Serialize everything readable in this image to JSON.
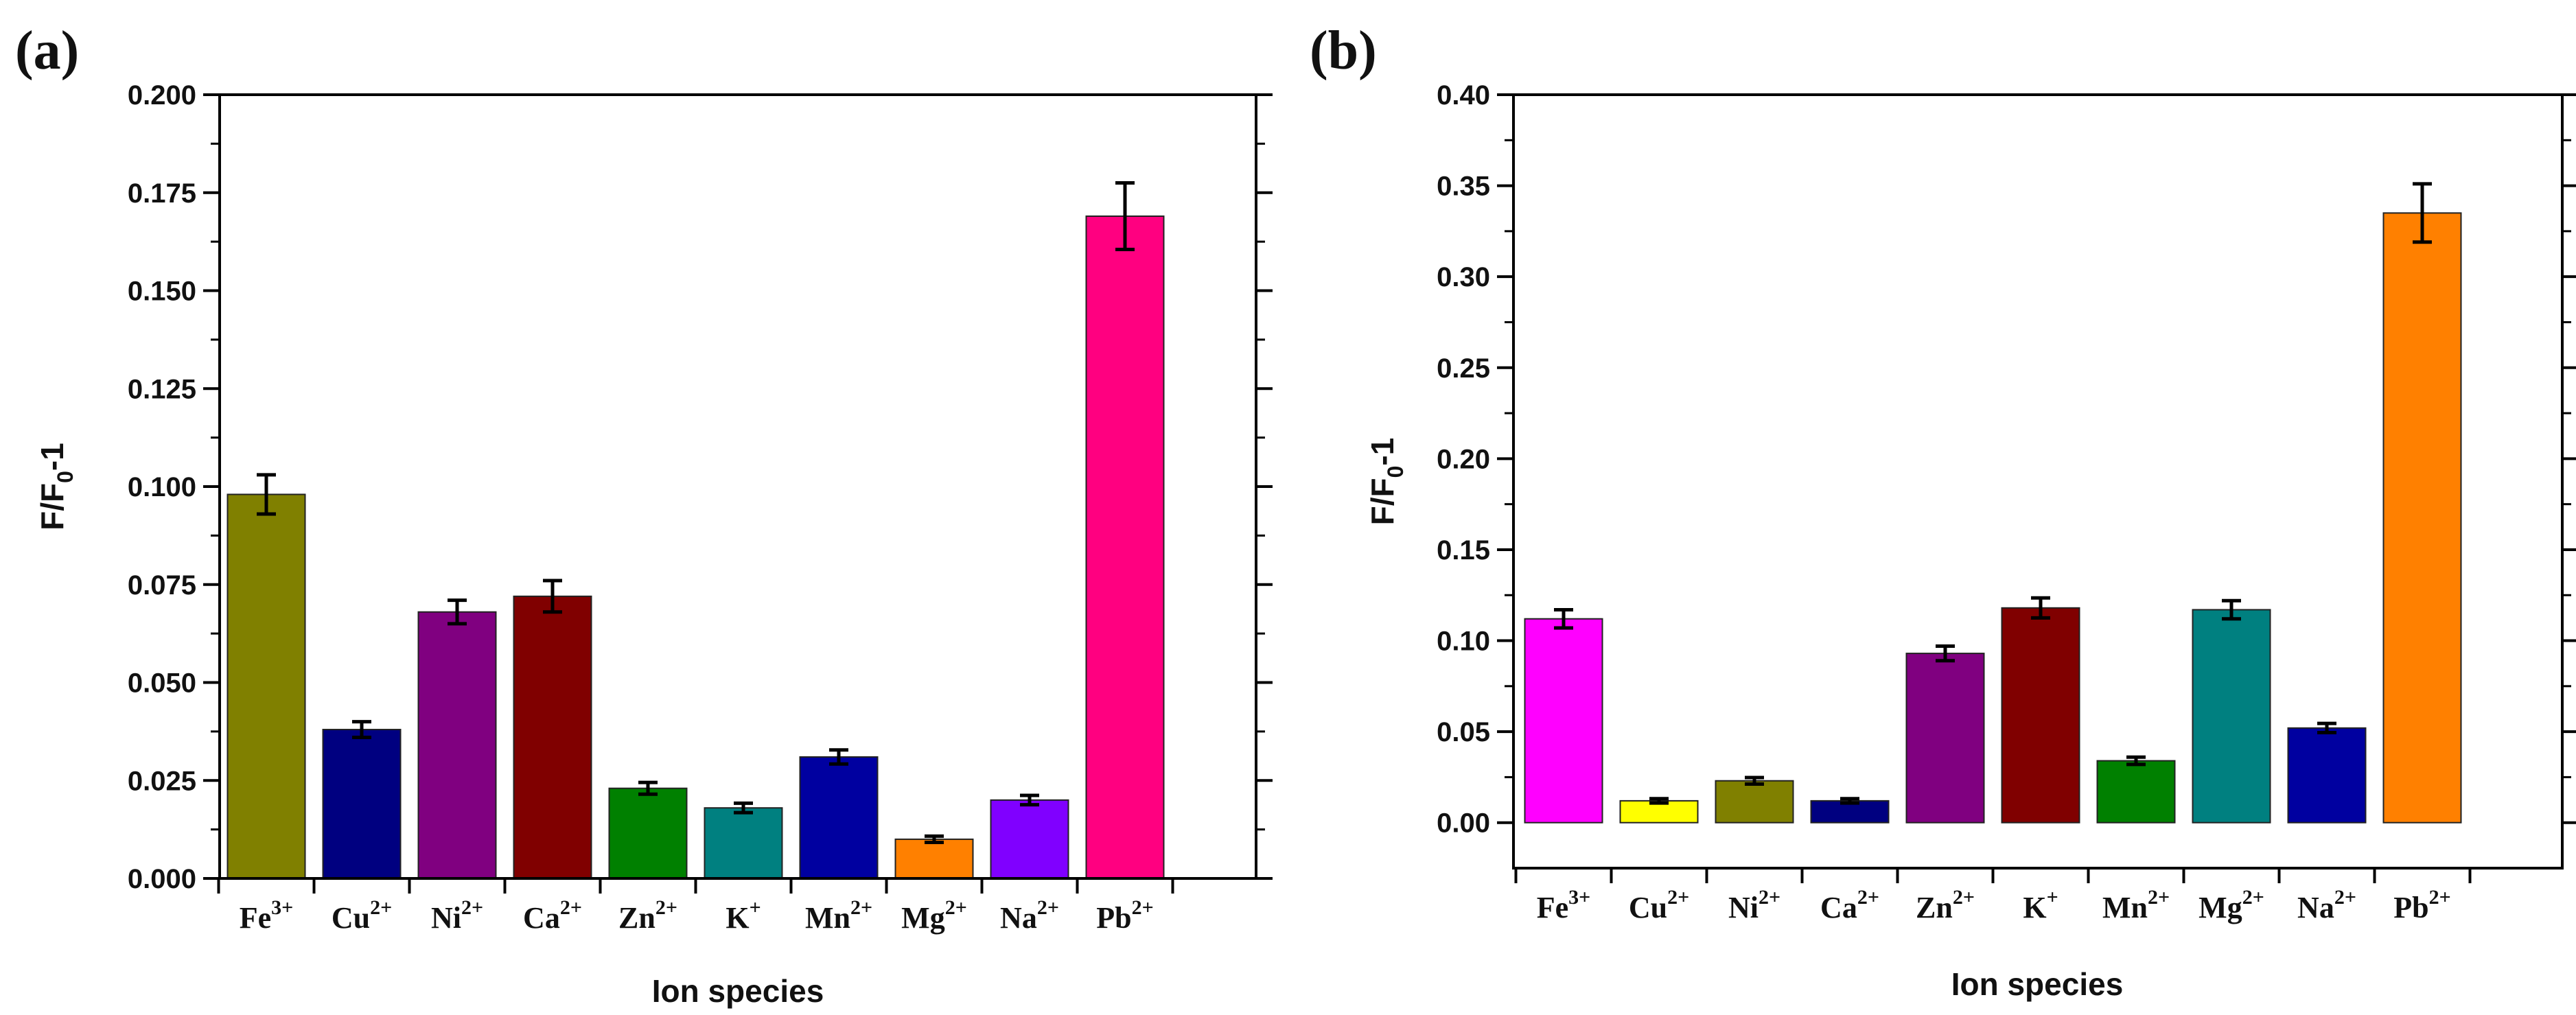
{
  "chart_data": [
    {
      "type": "bar",
      "panel_label": "(a)",
      "xlabel": "Ion species",
      "ylabel": {
        "main": "F/F",
        "sub": "0",
        "tail": "-1"
      },
      "ylim": [
        0,
        0.2
      ],
      "yticks": [
        "0.000",
        "0.025",
        "0.050",
        "0.075",
        "0.100",
        "0.125",
        "0.150",
        "0.175",
        "0.200"
      ],
      "grid": false,
      "categories": [
        {
          "base": "Fe",
          "sup": "3+"
        },
        {
          "base": "Cu",
          "sup": "2+"
        },
        {
          "base": "Ni",
          "sup": "2+"
        },
        {
          "base": "Ca",
          "sup": "2+"
        },
        {
          "base": "Zn",
          "sup": "2+"
        },
        {
          "base": "K",
          "sup": "+"
        },
        {
          "base": "Mn",
          "sup": "2+"
        },
        {
          "base": "Mg",
          "sup": "2+"
        },
        {
          "base": "Na",
          "sup": "2+"
        },
        {
          "base": "Pb",
          "sup": "2+"
        }
      ],
      "values": [
        0.098,
        0.038,
        0.068,
        0.072,
        0.023,
        0.018,
        0.031,
        0.01,
        0.02,
        0.169
      ],
      "errors": [
        0.005,
        0.002,
        0.003,
        0.004,
        0.0015,
        0.0012,
        0.0018,
        0.0008,
        0.0012,
        0.0085
      ],
      "colors": [
        "#808000",
        "#000080",
        "#800080",
        "#800000",
        "#008000",
        "#008080",
        "#0000a0",
        "#ff8000",
        "#8000ff",
        "#ff0080"
      ]
    },
    {
      "type": "bar",
      "panel_label": "(b)",
      "xlabel": "Ion species",
      "ylabel": {
        "main": "F/F",
        "sub": "0",
        "tail": "-1"
      },
      "ylim": [
        -0.025,
        0.4
      ],
      "yticks": [
        "0.00",
        "0.05",
        "0.10",
        "0.15",
        "0.20",
        "0.25",
        "0.30",
        "0.35",
        "0.40"
      ],
      "grid": false,
      "categories": [
        {
          "base": "Fe",
          "sup": "3+"
        },
        {
          "base": "Cu",
          "sup": "2+"
        },
        {
          "base": "Ni",
          "sup": "2+"
        },
        {
          "base": "Ca",
          "sup": "2+"
        },
        {
          "base": "Zn",
          "sup": "2+"
        },
        {
          "base": "K",
          "sup": "+"
        },
        {
          "base": "Mn",
          "sup": "2+"
        },
        {
          "base": "Mg",
          "sup": "2+"
        },
        {
          "base": "Na",
          "sup": "2+"
        },
        {
          "base": "Pb",
          "sup": "2+"
        }
      ],
      "values": [
        0.112,
        0.012,
        0.023,
        0.012,
        0.093,
        0.118,
        0.034,
        0.117,
        0.052,
        0.335
      ],
      "errors": [
        0.005,
        0.0012,
        0.0018,
        0.0012,
        0.004,
        0.0055,
        0.002,
        0.005,
        0.0025,
        0.016
      ],
      "colors": [
        "#ff00ff",
        "#ffff00",
        "#808000",
        "#000080",
        "#800080",
        "#800000",
        "#008000",
        "#008080",
        "#0000a0",
        "#ff8000"
      ]
    }
  ]
}
